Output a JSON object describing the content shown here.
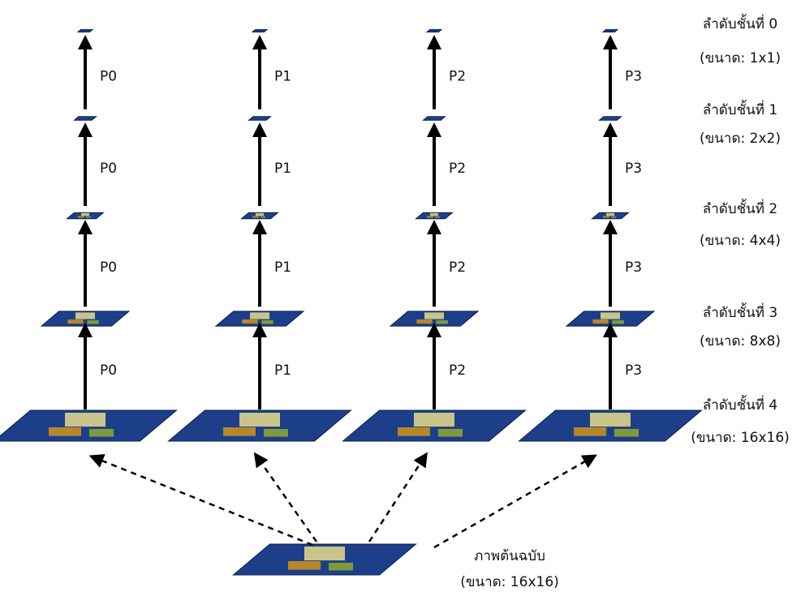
{
  "columns": [
    {
      "arrow_labels": [
        "P0",
        "P0",
        "P0",
        "P0"
      ]
    },
    {
      "arrow_labels": [
        "P1",
        "P1",
        "P1",
        "P1"
      ]
    },
    {
      "arrow_labels": [
        "P2",
        "P2",
        "P2",
        "P2"
      ]
    },
    {
      "arrow_labels": [
        "P3",
        "P3",
        "P3",
        "P3"
      ]
    }
  ],
  "levels": [
    {
      "label": "ลำดับชั้นที่ 0",
      "size": "(ขนาด: 1x1)"
    },
    {
      "label": "ลำดับชั้นที่ 1",
      "size": "(ขนาด: 2x2)"
    },
    {
      "label": "ลำดับชั้นที่ 2",
      "size": "(ขนาด: 4x4)"
    },
    {
      "label": "ลำดับชั้นที่ 3",
      "size": "(ขนาด: 8x8)"
    },
    {
      "label": "ลำดับชั้นที่ 4",
      "size": "(ขนาด: 16x16)"
    }
  ],
  "source": {
    "label": "ภาพต้นฉบับ",
    "size": "(ขนาด: 16x16)"
  }
}
